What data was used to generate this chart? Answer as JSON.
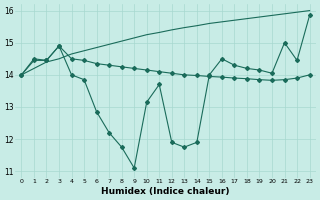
{
  "xlabel": "Humidex (Indice chaleur)",
  "xlim": [
    -0.5,
    23.5
  ],
  "ylim": [
    10.8,
    16.2
  ],
  "yticks": [
    11,
    12,
    13,
    14,
    15,
    16
  ],
  "xticks": [
    0,
    1,
    2,
    3,
    4,
    5,
    6,
    7,
    8,
    9,
    10,
    11,
    12,
    13,
    14,
    15,
    16,
    17,
    18,
    19,
    20,
    21,
    22,
    23
  ],
  "bg_color": "#c8ece6",
  "grid_color": "#a8d8d0",
  "line_color": "#1a6b5a",
  "line1_y": [
    14.0,
    14.5,
    14.45,
    14.9,
    14.0,
    13.85,
    12.85,
    12.2,
    11.75,
    11.1,
    13.15,
    13.7,
    11.9,
    11.75,
    11.9,
    14.0,
    14.5,
    14.3,
    14.2,
    14.15,
    14.05,
    15.0,
    14.45,
    15.85
  ],
  "line2_y": [
    14.0,
    14.45,
    14.45,
    14.9,
    14.5,
    14.45,
    14.35,
    14.3,
    14.25,
    14.2,
    14.15,
    14.1,
    14.05,
    14.0,
    13.98,
    13.95,
    13.93,
    13.9,
    13.88,
    13.85,
    13.83,
    13.85,
    13.9,
    14.0
  ],
  "line3_y": [
    14.0,
    14.2,
    14.4,
    14.5,
    14.65,
    14.75,
    14.85,
    14.95,
    15.05,
    15.15,
    15.25,
    15.32,
    15.4,
    15.47,
    15.53,
    15.6,
    15.65,
    15.7,
    15.75,
    15.8,
    15.85,
    15.9,
    15.95,
    16.0
  ],
  "marker": "D",
  "marker_size": 2.0
}
